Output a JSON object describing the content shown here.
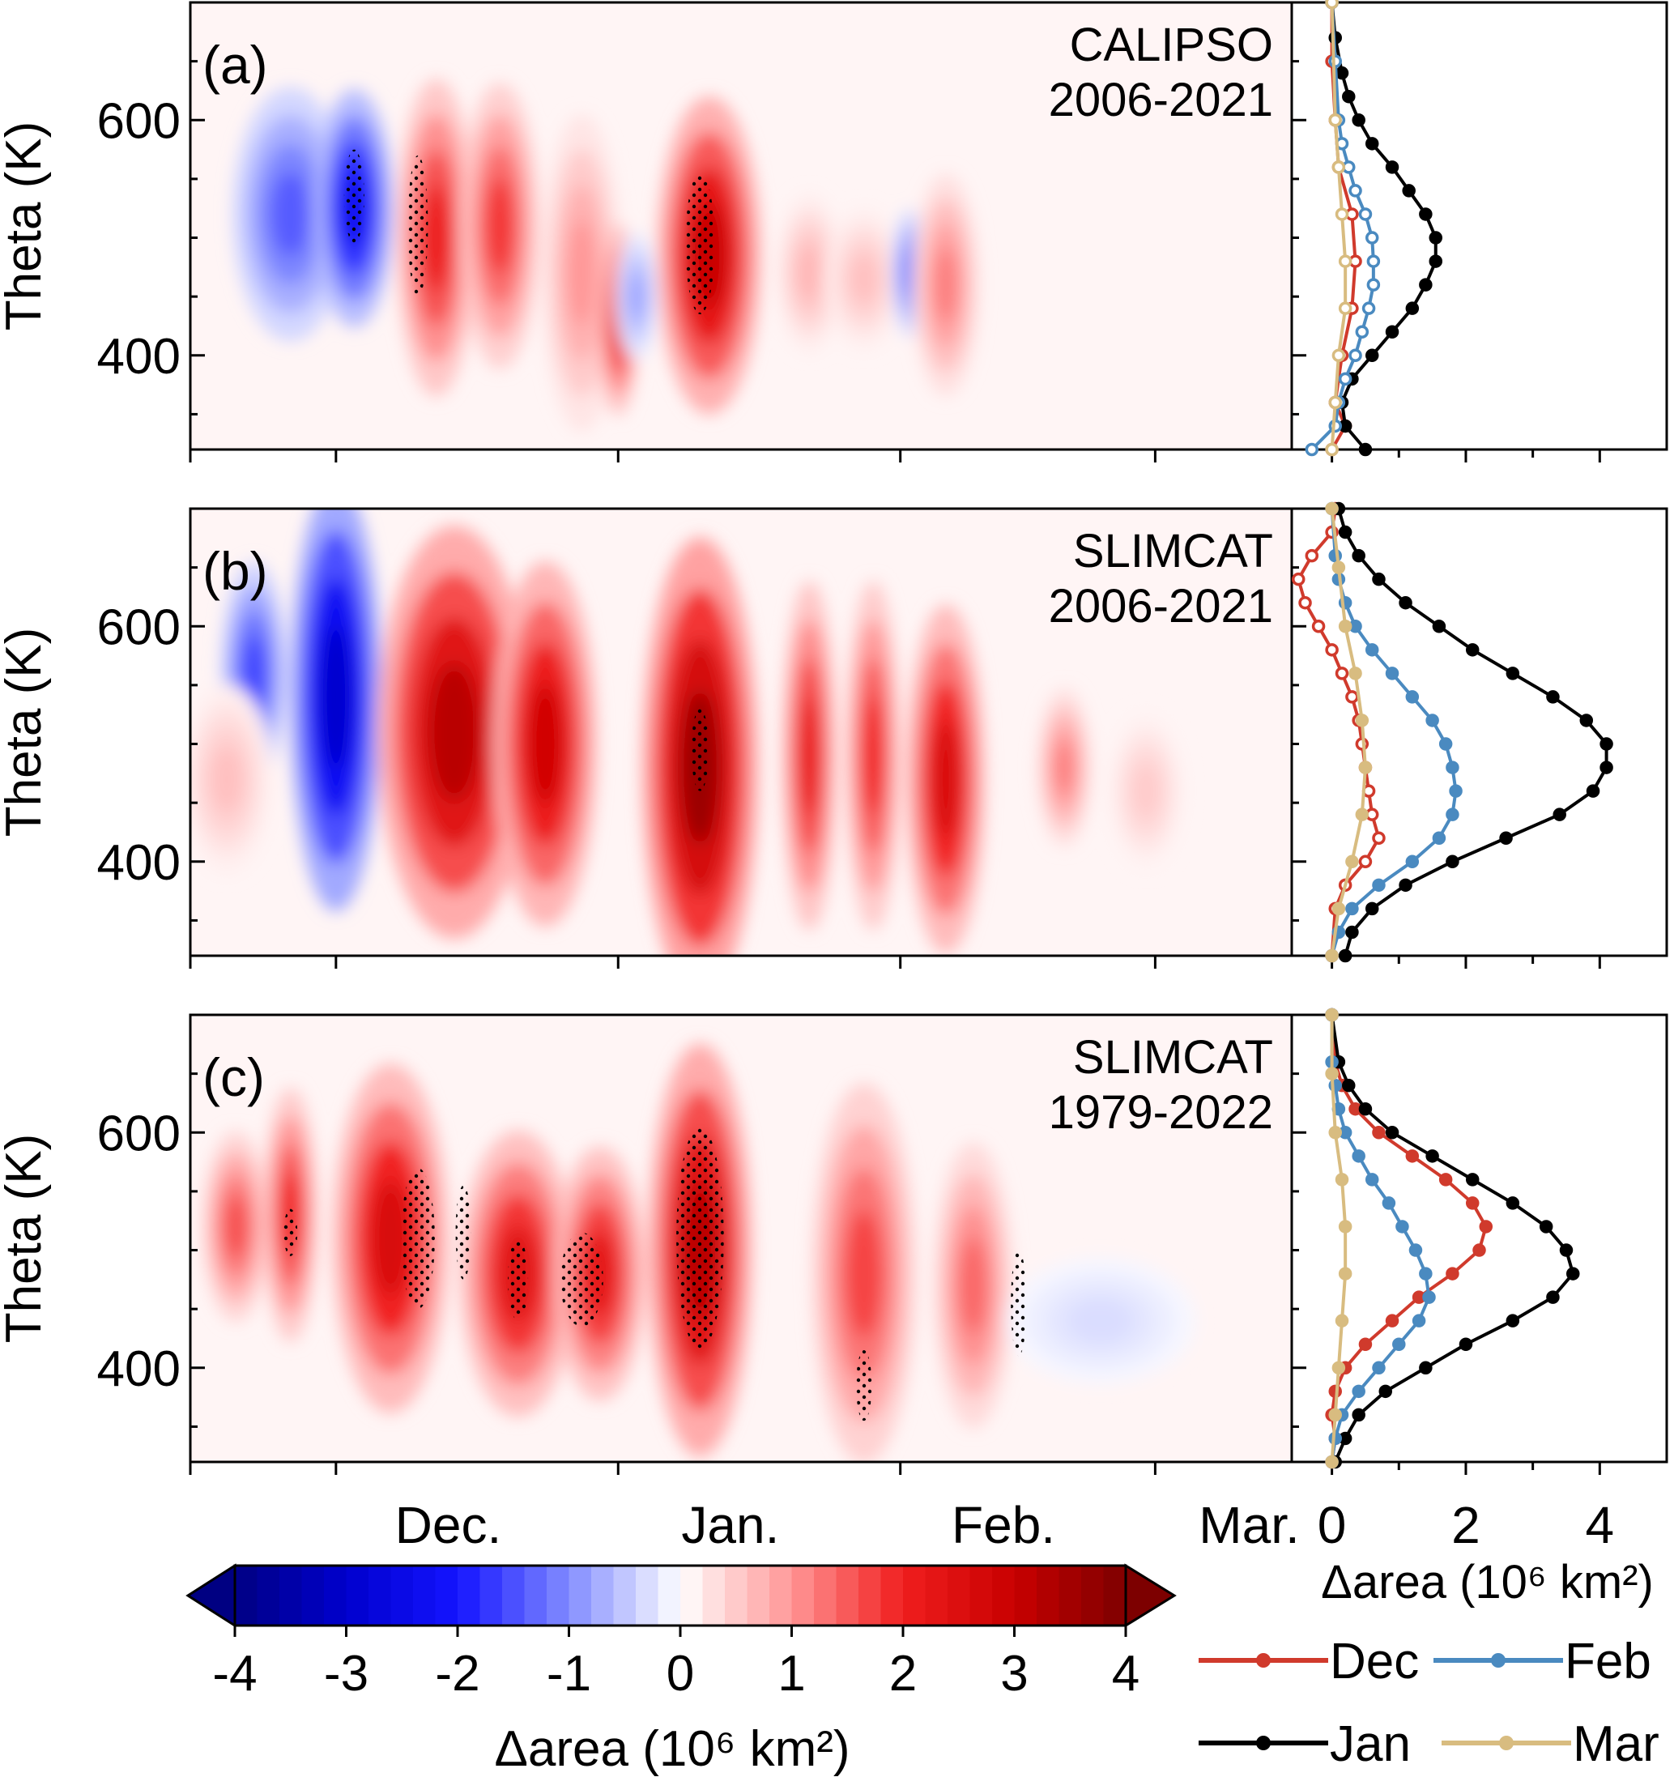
{
  "chart_data": [
    {
      "type": "heatmap",
      "panel_label": "(a)",
      "dataset": "CALIPSO",
      "period": "2006-2021",
      "ylabel": "Theta (K)",
      "ylim": [
        320,
        700
      ],
      "yticks": [
        400,
        600
      ],
      "x_month_labels": [
        "Dec.",
        "Jan.",
        "Feb.",
        "Mar."
      ],
      "x_range_days_from_nov15": [
        0,
        121
      ],
      "blobs": [
        {
          "day": 11,
          "theta": 520,
          "value": -1.4,
          "width_days": 8,
          "height_k": 160
        },
        {
          "day": 18,
          "theta": 525,
          "value": -2.3,
          "width_days": 5,
          "height_k": 150
        },
        {
          "day": 27,
          "theta": 500,
          "value": 2.1,
          "width_days": 5,
          "height_k": 200
        },
        {
          "day": 34,
          "theta": 510,
          "value": 1.8,
          "width_days": 5,
          "height_k": 180
        },
        {
          "day": 43,
          "theta": 470,
          "value": 1.0,
          "width_days": 5,
          "height_k": 200
        },
        {
          "day": 47,
          "theta": 430,
          "value": 2.2,
          "width_days": 2,
          "height_k": 120
        },
        {
          "day": 49,
          "theta": 450,
          "value": -0.8,
          "width_days": 2,
          "height_k": 80
        },
        {
          "day": 57,
          "theta": 485,
          "value": 3.0,
          "width_days": 7,
          "height_k": 200
        },
        {
          "day": 68,
          "theta": 470,
          "value": 0.7,
          "width_days": 4,
          "height_k": 100
        },
        {
          "day": 74,
          "theta": 465,
          "value": 0.6,
          "width_days": 5,
          "height_k": 90
        },
        {
          "day": 79,
          "theta": 470,
          "value": -1.2,
          "width_days": 1.5,
          "height_k": 80
        },
        {
          "day": 83,
          "theta": 460,
          "value": 1.2,
          "width_days": 4,
          "height_k": 140
        }
      ],
      "stipple": [
        {
          "day": 18,
          "theta": 535,
          "width_days": 1.5,
          "height_k": 80
        },
        {
          "day": 25,
          "theta": 510,
          "width_days": 1.5,
          "height_k": 120
        },
        {
          "day": 56,
          "theta": 495,
          "width_days": 2.5,
          "height_k": 120
        }
      ],
      "profile": {
        "xlabel": "",
        "xlim": [
          -0.6,
          5
        ],
        "xticks": [
          0,
          2,
          4
        ],
        "series": [
          {
            "name": "Dec",
            "color": "#d03a2c",
            "hollow": true,
            "theta": [
              320,
              340,
              360,
              400,
              440,
              480,
              520,
              560,
              600,
              650,
              700
            ],
            "values": [
              0.0,
              0.2,
              0.05,
              0.15,
              0.3,
              0.35,
              0.3,
              0.1,
              0.05,
              0.0,
              0.0
            ]
          },
          {
            "name": "Jan",
            "color": "#000000",
            "hollow": false,
            "theta": [
              320,
              340,
              360,
              380,
              400,
              420,
              440,
              460,
              480,
              500,
              520,
              540,
              560,
              580,
              600,
              620,
              640,
              670,
              700
            ],
            "values": [
              0.5,
              0.2,
              0.15,
              0.3,
              0.6,
              0.9,
              1.2,
              1.4,
              1.55,
              1.55,
              1.4,
              1.15,
              0.9,
              0.6,
              0.4,
              0.25,
              0.15,
              0.05,
              0.0
            ]
          },
          {
            "name": "Feb",
            "color": "#4a8ac0",
            "hollow": true,
            "theta": [
              320,
              340,
              360,
              380,
              400,
              420,
              440,
              460,
              480,
              500,
              520,
              540,
              560,
              580,
              600,
              650,
              700
            ],
            "values": [
              -0.3,
              0.05,
              0.1,
              0.2,
              0.35,
              0.45,
              0.55,
              0.62,
              0.62,
              0.6,
              0.5,
              0.35,
              0.25,
              0.15,
              0.1,
              0.05,
              0.0
            ]
          },
          {
            "name": "Mar",
            "color": "#d8bc80",
            "hollow": true,
            "theta": [
              320,
              360,
              400,
              440,
              480,
              520,
              560,
              600,
              700
            ],
            "values": [
              0.0,
              0.05,
              0.1,
              0.2,
              0.2,
              0.15,
              0.1,
              0.05,
              0.0
            ]
          }
        ]
      }
    },
    {
      "type": "heatmap",
      "panel_label": "(b)",
      "dataset": "SLIMCAT",
      "period": "2006-2021",
      "ylabel": "Theta (K)",
      "ylim": [
        320,
        700
      ],
      "yticks": [
        400,
        600
      ],
      "x_month_labels": [
        "Dec.",
        "Jan.",
        "Feb.",
        "Mar."
      ],
      "x_range_days_from_nov15": [
        0,
        121
      ],
      "blobs": [
        {
          "day": 7,
          "theta": 560,
          "value": -1.6,
          "width_days": 4,
          "height_k": 140
        },
        {
          "day": 16,
          "theta": 540,
          "value": -3.0,
          "width_days": 6,
          "height_k": 270
        },
        {
          "day": 4,
          "theta": 470,
          "value": 0.6,
          "width_days": 6,
          "height_k": 120
        },
        {
          "day": 29,
          "theta": 510,
          "value": 3.2,
          "width_days": 11,
          "height_k": 260
        },
        {
          "day": 39,
          "theta": 500,
          "value": 2.8,
          "width_days": 7,
          "height_k": 230
        },
        {
          "day": 56,
          "theta": 480,
          "value": 3.6,
          "width_days": 8,
          "height_k": 290
        },
        {
          "day": 68,
          "theta": 490,
          "value": 2.2,
          "width_days": 3,
          "height_k": 220
        },
        {
          "day": 75,
          "theta": 490,
          "value": 2.0,
          "width_days": 3,
          "height_k": 220
        },
        {
          "day": 83,
          "theta": 470,
          "value": 2.6,
          "width_days": 5,
          "height_k": 220
        },
        {
          "day": 96,
          "theta": 480,
          "value": 1.2,
          "width_days": 3,
          "height_k": 100
        },
        {
          "day": 105,
          "theta": 460,
          "value": 0.5,
          "width_days": 5,
          "height_k": 100
        }
      ],
      "stipple": [
        {
          "day": 56,
          "theta": 495,
          "width_days": 1.2,
          "height_k": 70
        }
      ],
      "profile": {
        "xlabel": "",
        "xlim": [
          -0.6,
          5
        ],
        "xticks": [
          0,
          2,
          4
        ],
        "series": [
          {
            "name": "Dec",
            "color": "#d03a2c",
            "hollow": true,
            "theta": [
              320,
              360,
              380,
              400,
              420,
              440,
              460,
              480,
              500,
              520,
              540,
              560,
              580,
              600,
              620,
              640,
              660,
              680,
              700
            ],
            "values": [
              0.0,
              0.05,
              0.2,
              0.5,
              0.7,
              0.6,
              0.55,
              0.5,
              0.45,
              0.4,
              0.3,
              0.15,
              0.0,
              -0.2,
              -0.4,
              -0.5,
              -0.3,
              0.0,
              0.05
            ]
          },
          {
            "name": "Jan",
            "color": "#000000",
            "hollow": false,
            "theta": [
              320,
              340,
              360,
              380,
              400,
              420,
              440,
              460,
              480,
              500,
              520,
              540,
              560,
              580,
              600,
              620,
              640,
              660,
              680,
              700
            ],
            "values": [
              0.2,
              0.3,
              0.6,
              1.1,
              1.8,
              2.6,
              3.4,
              3.9,
              4.1,
              4.1,
              3.8,
              3.3,
              2.7,
              2.1,
              1.6,
              1.1,
              0.7,
              0.4,
              0.2,
              0.1
            ]
          },
          {
            "name": "Feb",
            "color": "#4a8ac0",
            "hollow": false,
            "theta": [
              320,
              340,
              360,
              380,
              400,
              420,
              440,
              460,
              480,
              500,
              520,
              540,
              560,
              580,
              600,
              620,
              640,
              660,
              700
            ],
            "values": [
              0.0,
              0.1,
              0.3,
              0.7,
              1.2,
              1.6,
              1.8,
              1.85,
              1.8,
              1.7,
              1.5,
              1.2,
              0.9,
              0.6,
              0.35,
              0.2,
              0.1,
              0.05,
              0.0
            ]
          },
          {
            "name": "Mar",
            "color": "#d8bc80",
            "hollow": false,
            "theta": [
              320,
              360,
              400,
              440,
              480,
              520,
              560,
              600,
              650,
              700
            ],
            "values": [
              0.0,
              0.1,
              0.3,
              0.45,
              0.5,
              0.45,
              0.35,
              0.2,
              0.1,
              0.0
            ]
          }
        ]
      }
    },
    {
      "type": "heatmap",
      "panel_label": "(c)",
      "dataset": "SLIMCAT",
      "period": "1979-2022",
      "ylabel": "Theta (K)",
      "ylim": [
        320,
        700
      ],
      "yticks": [
        400,
        600
      ],
      "x_month_labels": [
        "Dec.",
        "Jan.",
        "Feb.",
        "Mar."
      ],
      "x_range_days_from_nov15": [
        0,
        121
      ],
      "blobs": [
        {
          "day": 5,
          "theta": 520,
          "value": 1.6,
          "width_days": 4,
          "height_k": 120
        },
        {
          "day": 11,
          "theta": 530,
          "value": 2.0,
          "width_days": 3,
          "height_k": 160
        },
        {
          "day": 22,
          "theta": 510,
          "value": 2.6,
          "width_days": 8,
          "height_k": 220
        },
        {
          "day": 36,
          "theta": 480,
          "value": 2.4,
          "width_days": 8,
          "height_k": 180
        },
        {
          "day": 45,
          "theta": 480,
          "value": 2.3,
          "width_days": 6,
          "height_k": 160
        },
        {
          "day": 56,
          "theta": 500,
          "value": 3.2,
          "width_days": 7,
          "height_k": 260
        },
        {
          "day": 74,
          "theta": 480,
          "value": 1.7,
          "width_days": 7,
          "height_k": 240
        },
        {
          "day": 86,
          "theta": 470,
          "value": 1.4,
          "width_days": 5,
          "height_k": 180
        },
        {
          "day": 100,
          "theta": 440,
          "value": -0.3,
          "width_days": 14,
          "height_k": 80
        }
      ],
      "stipple": [
        {
          "day": 11,
          "theta": 515,
          "width_days": 0.8,
          "height_k": 40
        },
        {
          "day": 25,
          "theta": 510,
          "width_days": 3,
          "height_k": 120
        },
        {
          "day": 30,
          "theta": 515,
          "width_days": 1,
          "height_k": 80
        },
        {
          "day": 36,
          "theta": 475,
          "width_days": 1.5,
          "height_k": 70
        },
        {
          "day": 43,
          "theta": 475,
          "width_days": 4,
          "height_k": 80
        },
        {
          "day": 56,
          "theta": 510,
          "width_days": 4.5,
          "height_k": 190
        },
        {
          "day": 74,
          "theta": 385,
          "width_days": 1,
          "height_k": 60
        },
        {
          "day": 91,
          "theta": 455,
          "width_days": 1,
          "height_k": 90
        }
      ],
      "profile": {
        "xlabel": "Δarea (10⁶ km²)",
        "xlim": [
          -0.6,
          5
        ],
        "xticks": [
          0,
          2,
          4
        ],
        "series": [
          {
            "name": "Dec",
            "color": "#d03a2c",
            "hollow": false,
            "theta": [
              320,
              340,
              360,
              380,
              400,
              420,
              440,
              460,
              480,
              500,
              520,
              540,
              560,
              580,
              600,
              620,
              640,
              660,
              700
            ],
            "values": [
              0.0,
              0.05,
              0.0,
              0.05,
              0.2,
              0.5,
              0.9,
              1.3,
              1.8,
              2.2,
              2.3,
              2.1,
              1.7,
              1.2,
              0.7,
              0.35,
              0.15,
              0.05,
              0.0
            ]
          },
          {
            "name": "Jan",
            "color": "#000000",
            "hollow": false,
            "theta": [
              320,
              340,
              360,
              380,
              400,
              420,
              440,
              460,
              480,
              500,
              520,
              540,
              560,
              580,
              600,
              620,
              640,
              660,
              700
            ],
            "values": [
              0.05,
              0.2,
              0.4,
              0.8,
              1.4,
              2.0,
              2.7,
              3.3,
              3.6,
              3.5,
              3.2,
              2.7,
              2.1,
              1.5,
              0.9,
              0.5,
              0.25,
              0.1,
              0.0
            ]
          },
          {
            "name": "Feb",
            "color": "#4a8ac0",
            "hollow": false,
            "theta": [
              320,
              340,
              360,
              380,
              400,
              420,
              440,
              460,
              480,
              500,
              520,
              540,
              560,
              580,
              600,
              620,
              640,
              660,
              700
            ],
            "values": [
              0.0,
              0.05,
              0.15,
              0.4,
              0.7,
              1.0,
              1.3,
              1.45,
              1.4,
              1.25,
              1.05,
              0.85,
              0.6,
              0.4,
              0.2,
              0.1,
              0.05,
              0.0,
              0.0
            ]
          },
          {
            "name": "Mar",
            "color": "#d8bc80",
            "hollow": false,
            "theta": [
              320,
              360,
              400,
              440,
              480,
              520,
              560,
              600,
              650,
              700
            ],
            "values": [
              0.0,
              0.05,
              0.1,
              0.15,
              0.2,
              0.2,
              0.15,
              0.05,
              0.0,
              0.0
            ]
          }
        ]
      }
    }
  ],
  "colorbar": {
    "label": "Δarea (10⁶ km²)",
    "ticks": [
      "-4",
      "-3",
      "-2",
      "-1",
      "0",
      "1",
      "2",
      "3",
      "4"
    ],
    "range": [
      -4,
      4
    ]
  },
  "legend": [
    {
      "name": "Dec",
      "color": "#d03a2c"
    },
    {
      "name": "Feb",
      "color": "#4a8ac0"
    },
    {
      "name": "Jan",
      "color": "#000000"
    },
    {
      "name": "Mar",
      "color": "#d8bc80"
    }
  ]
}
